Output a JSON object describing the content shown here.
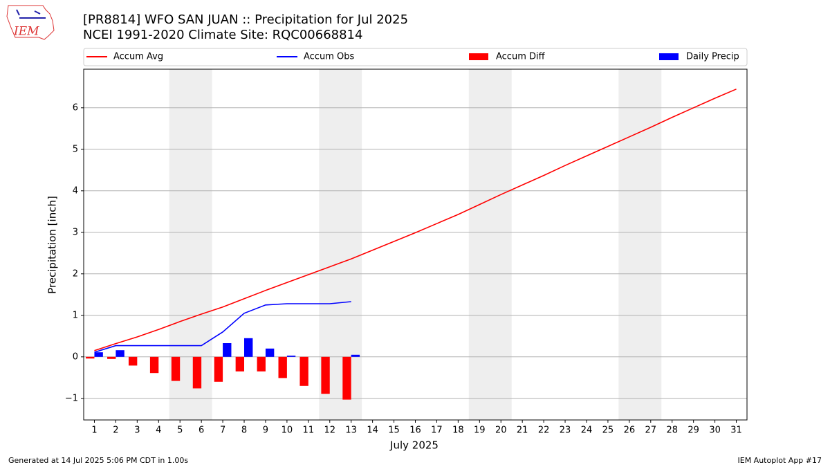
{
  "chart_data": {
    "type": "combo",
    "title": "[PR8814] WFO SAN JUAN :: Precipitation for Jul 2025",
    "subtitle": "NCEI 1991-2020 Climate Site: RQC00668814",
    "xlabel": "July 2025",
    "ylabel": "Precipitation [inch]",
    "logo_text": "IEM",
    "footer_left": "Generated at 14 Jul 2025 5:06 PM CDT in 1.00s",
    "footer_right": "IEM Autoplot App #17",
    "x": [
      1,
      2,
      3,
      4,
      5,
      6,
      7,
      8,
      9,
      10,
      11,
      12,
      13,
      14,
      15,
      16,
      17,
      18,
      19,
      20,
      21,
      22,
      23,
      24,
      25,
      26,
      27,
      28,
      29,
      30,
      31
    ],
    "series": [
      {
        "name": "Accum Avg",
        "color": "#ff0000",
        "style": "line",
        "values": [
          0.15,
          0.32,
          0.48,
          0.66,
          0.85,
          1.03,
          1.2,
          1.4,
          1.6,
          1.79,
          1.98,
          2.17,
          2.36,
          2.57,
          2.78,
          2.99,
          3.21,
          3.43,
          3.67,
          3.91,
          4.14,
          4.37,
          4.61,
          4.84,
          5.07,
          5.3,
          5.53,
          5.77,
          6.0,
          6.23,
          6.45
        ]
      },
      {
        "name": "Accum Obs",
        "color": "#0000ff",
        "style": "line",
        "values": [
          0.11,
          0.27,
          0.27,
          0.27,
          0.27,
          0.27,
          0.6,
          1.05,
          1.25,
          1.28,
          1.28,
          1.28,
          1.33,
          null,
          null,
          null,
          null,
          null,
          null,
          null,
          null,
          null,
          null,
          null,
          null,
          null,
          null,
          null,
          null,
          null,
          null
        ]
      },
      {
        "name": "Accum Diff",
        "color": "#ff0000",
        "style": "bar",
        "values": [
          -0.04,
          -0.05,
          -0.21,
          -0.39,
          -0.58,
          -0.76,
          -0.6,
          -0.35,
          -0.35,
          -0.51,
          -0.7,
          -0.89,
          -1.03,
          null,
          null,
          null,
          null,
          null,
          null,
          null,
          null,
          null,
          null,
          null,
          null,
          null,
          null,
          null,
          null,
          null,
          null
        ]
      },
      {
        "name": "Daily Precip",
        "color": "#0000ff",
        "style": "bar",
        "values": [
          0.11,
          0.16,
          0,
          0,
          0,
          0,
          0.33,
          0.45,
          0.2,
          0.03,
          0,
          0,
          0.05,
          null,
          null,
          null,
          null,
          null,
          null,
          null,
          null,
          null,
          null,
          null,
          null,
          null,
          null,
          null,
          null,
          null,
          null
        ]
      }
    ],
    "shaded_spans": [
      [
        4.5,
        6.5
      ],
      [
        11.5,
        13.5
      ],
      [
        18.5,
        20.5
      ],
      [
        25.5,
        27.5
      ]
    ],
    "shade_color": "#eeeeee",
    "xlim": [
      0.5,
      31.5
    ],
    "ylim": [
      -1.52,
      6.93
    ],
    "yticks": [
      {
        "value": -1,
        "label": "−1"
      },
      0,
      1,
      2,
      3,
      4,
      5,
      6
    ],
    "grid": "y",
    "legend": "top"
  }
}
